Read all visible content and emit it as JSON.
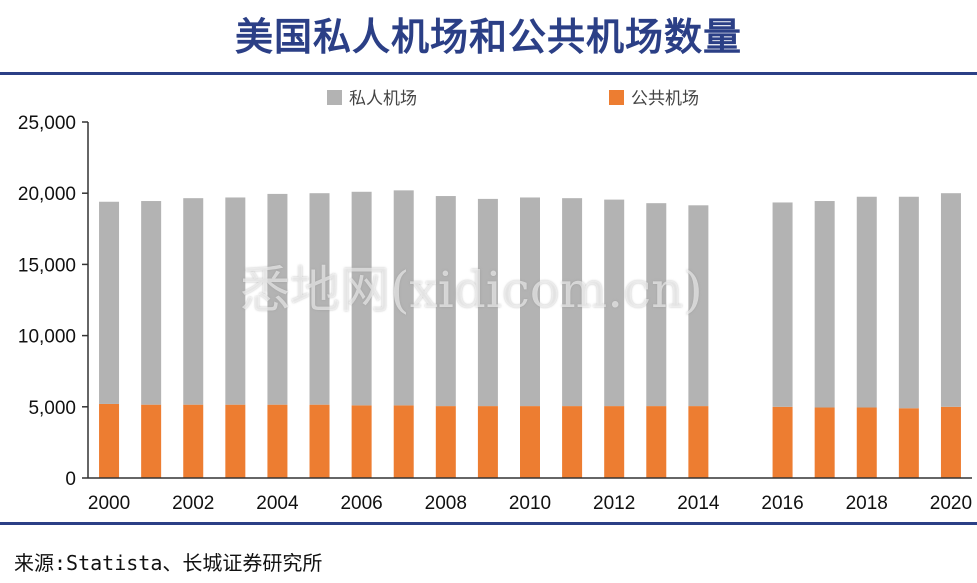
{
  "header": {
    "title": "美国私人机场和公共机场数量"
  },
  "footer": {
    "source": "来源:Statista、长城证券研究所"
  },
  "watermark": "悉地网(xidicom.cn)",
  "chart_data": {
    "type": "bar",
    "stacked": true,
    "title": "美国私人机场和公共机场数量",
    "xlabel": "",
    "ylabel": "",
    "ylim": [
      0,
      25000
    ],
    "yticks": [
      0,
      5000,
      10000,
      15000,
      20000,
      25000
    ],
    "ytick_labels": [
      "0",
      "5,000",
      "10,000",
      "15,000",
      "20,000",
      "25,000"
    ],
    "categories": [
      "2000",
      "2001",
      "2002",
      "2003",
      "2004",
      "2005",
      "2006",
      "2007",
      "2008",
      "2009",
      "2010",
      "2011",
      "2012",
      "2013",
      "2014",
      "2015",
      "2016",
      "2017",
      "2018",
      "2019",
      "2020"
    ],
    "xtick_labels": [
      "2000",
      "2002",
      "2004",
      "2006",
      "2008",
      "2010",
      "2012",
      "2014",
      "2016",
      "2018",
      "2020"
    ],
    "legend_position": "top-center",
    "grid": false,
    "series": [
      {
        "name": "公共机场",
        "color": "#ed7d31",
        "values": [
          5200,
          5150,
          5150,
          5150,
          5150,
          5150,
          5100,
          5100,
          5050,
          5050,
          5050,
          5050,
          5050,
          5050,
          5050,
          null,
          5000,
          4950,
          4950,
          4900,
          5000
        ]
      },
      {
        "name": "私人机场",
        "color": "#b3b3b3",
        "values": [
          14200,
          14300,
          14500,
          14550,
          14800,
          14850,
          15000,
          15100,
          14750,
          14550,
          14650,
          14600,
          14500,
          14250,
          14100,
          null,
          14350,
          14500,
          14800,
          14850,
          15000
        ]
      }
    ]
  }
}
